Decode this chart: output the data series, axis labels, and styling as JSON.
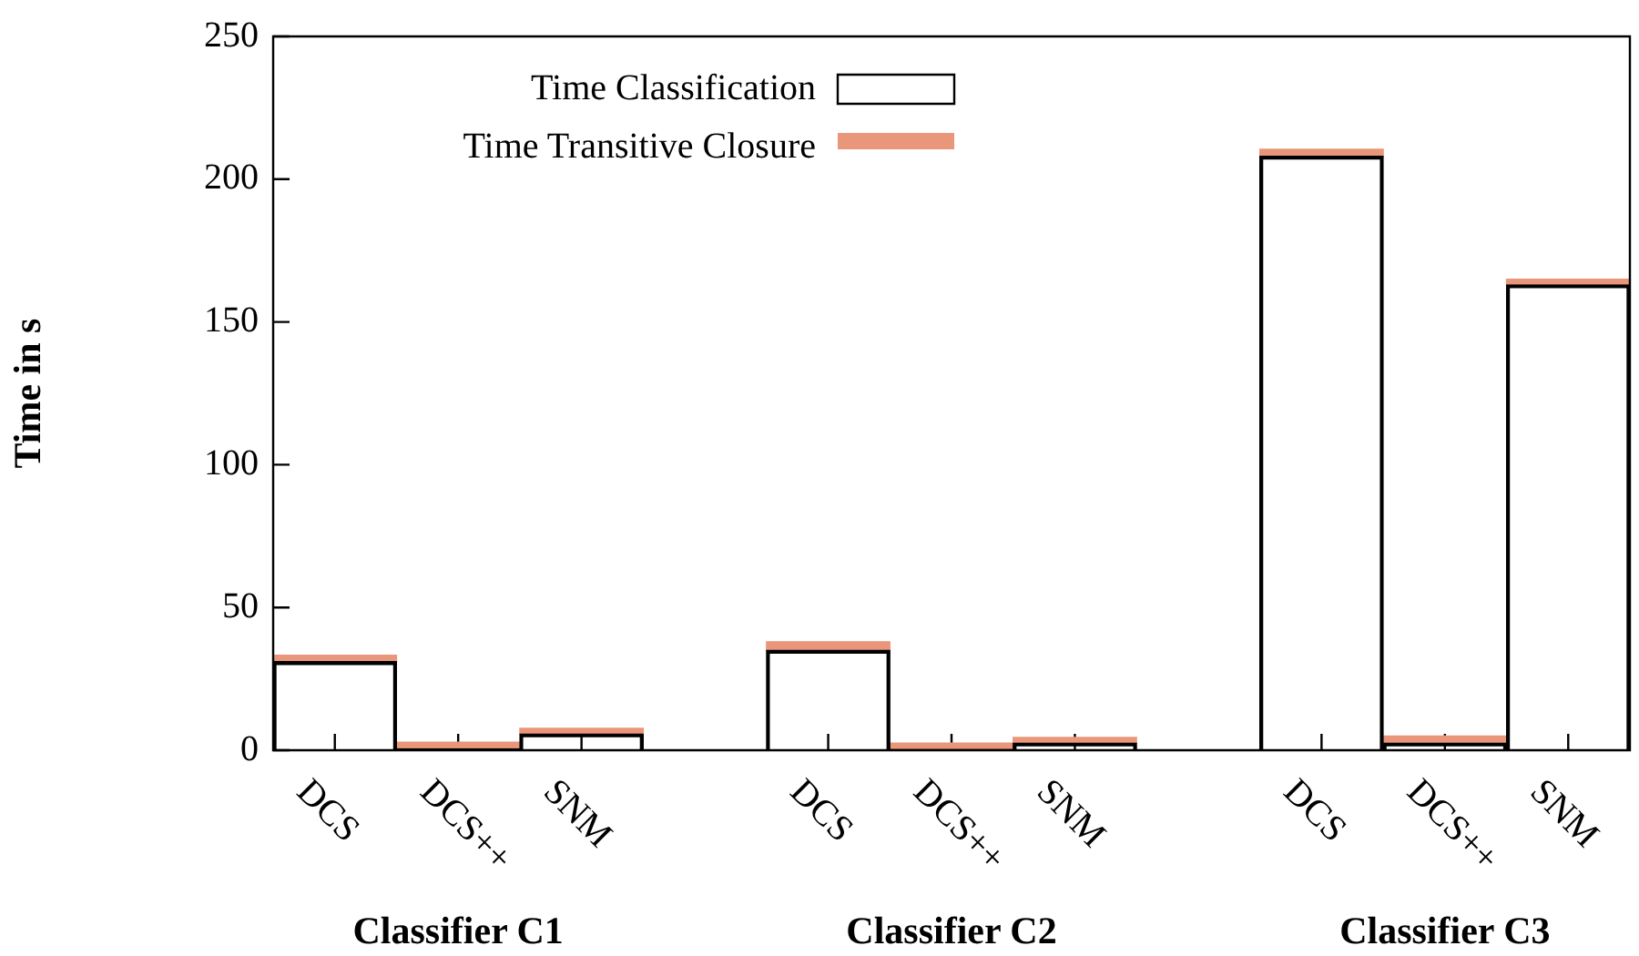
{
  "chart_data": {
    "type": "bar",
    "stacked": true,
    "ylabel": "Time in s",
    "categories": [
      "DCS",
      "DCS++",
      "SNM",
      null,
      "DCS",
      "DCS++",
      "SNM",
      null,
      "DCS",
      "DCS++",
      "SNM"
    ],
    "series": [
      {
        "name": "Time Classification",
        "color": "#000000",
        "values": [
          31,
          0.5,
          5.7,
          null,
          35,
          0.3,
          2.5,
          null,
          208,
          2.5,
          163
        ]
      },
      {
        "name": "Time Transitive Closure",
        "color": "#e9967a",
        "values": [
          2.3,
          2.3,
          2,
          null,
          3,
          2.2,
          2,
          null,
          2.5,
          2.5,
          2
        ]
      }
    ],
    "annotations": [
      "Classifier C1",
      "Classifier C2",
      "Classifier C3"
    ],
    "ylim": [
      0,
      250
    ],
    "yticks": [
      0,
      50,
      100,
      150,
      200,
      250
    ],
    "grid": false,
    "legend": "top left"
  }
}
